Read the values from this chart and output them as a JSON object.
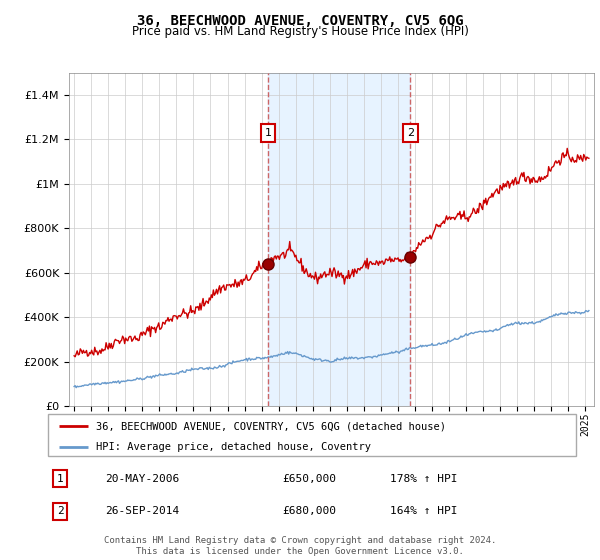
{
  "title": "36, BEECHWOOD AVENUE, COVENTRY, CV5 6QG",
  "subtitle": "Price paid vs. HM Land Registry's House Price Index (HPI)",
  "legend_line1": "36, BEECHWOOD AVENUE, COVENTRY, CV5 6QG (detached house)",
  "legend_line2": "HPI: Average price, detached house, Coventry",
  "sale1_label": "1",
  "sale1_date": "20-MAY-2006",
  "sale1_price": "£650,000",
  "sale1_hpi": "178% ↑ HPI",
  "sale1_year": 2006.38,
  "sale1_value": 650000,
  "sale2_label": "2",
  "sale2_date": "26-SEP-2014",
  "sale2_price": "£680,000",
  "sale2_hpi": "164% ↑ HPI",
  "sale2_year": 2014.73,
  "sale2_value": 680000,
  "footer": "Contains HM Land Registry data © Crown copyright and database right 2024.\nThis data is licensed under the Open Government Licence v3.0.",
  "red_color": "#cc0000",
  "blue_color": "#6699cc",
  "dashed_color": "#cc6666",
  "marker_box_color": "#cc0000",
  "shade_color": "#ddeeff",
  "ylim_max": 1500000,
  "xlim_start": 1994.7,
  "xlim_end": 2025.5
}
